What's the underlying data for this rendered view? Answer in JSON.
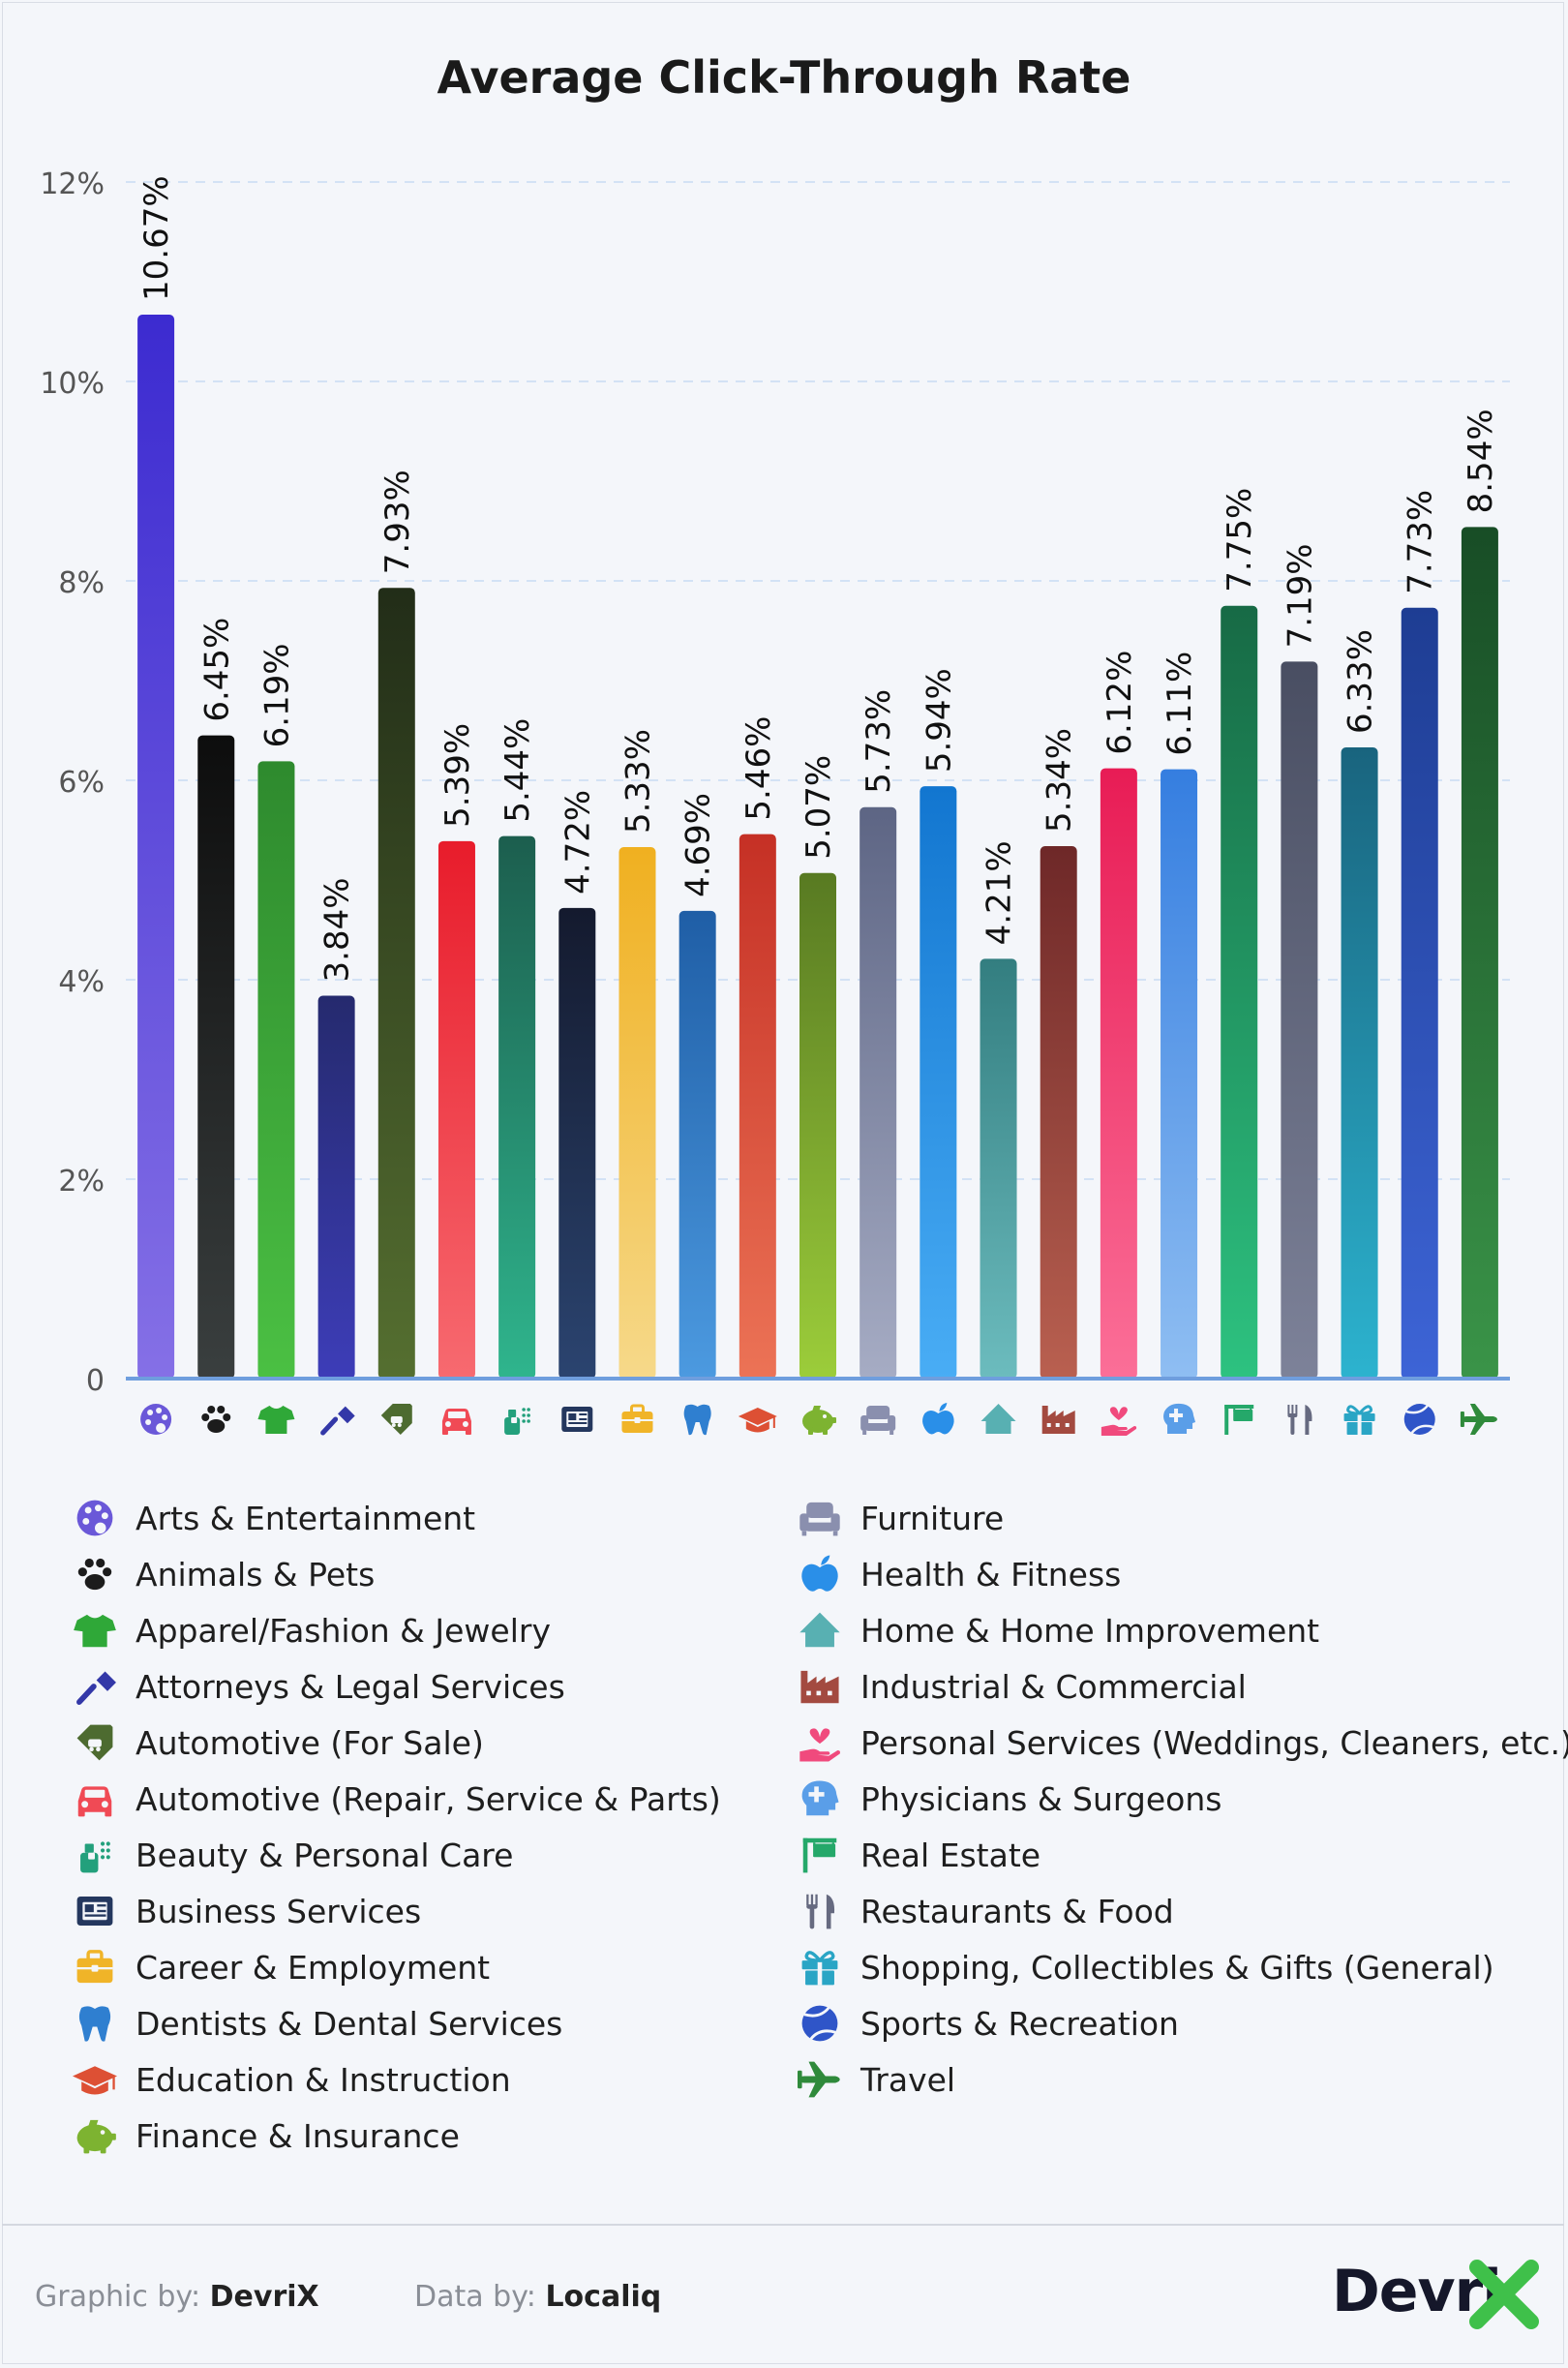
{
  "chart_data": {
    "type": "bar",
    "title": "Average Click-Through Rate",
    "xlabel": "",
    "ylabel": "",
    "ylim": [
      0,
      12
    ],
    "yticks": [
      "0",
      "2%",
      "4%",
      "6%",
      "8%",
      "10%",
      "12%"
    ],
    "ytick_values": [
      0,
      2,
      4,
      6,
      8,
      10,
      12
    ],
    "grid": true,
    "categories": [
      "Arts & Entertainment",
      "Animals & Pets",
      "Apparel/Fashion & Jewelry",
      "Attorneys & Legal Services",
      "Automotive (For Sale)",
      "Automotive (Repair, Service & Parts)",
      "Beauty & Personal Care",
      "Business Services",
      "Career & Employment",
      "Dentists & Dental Services",
      "Education & Instruction",
      "Finance & Insurance",
      "Furniture",
      "Health & Fitness",
      "Home & Home Improvement",
      "Industrial & Commercial",
      "Personal Services (Weddings, Cleaners, etc.)",
      "Physicians & Surgeons",
      "Real Estate",
      "Restaurants & Food",
      "Shopping, Collectibles & Gifts (General)",
      "Sports & Recreation",
      "Travel"
    ],
    "values": [
      10.67,
      6.45,
      6.19,
      3.84,
      7.93,
      5.39,
      5.44,
      4.72,
      5.33,
      4.69,
      5.46,
      5.07,
      5.73,
      5.94,
      4.21,
      5.34,
      6.12,
      6.11,
      7.75,
      7.19,
      6.33,
      7.73,
      8.54
    ],
    "data_labels": [
      "10.67%",
      "6.45%",
      "6.19%",
      "3.84%",
      "7.93%",
      "5.39%",
      "5.44%",
      "4.72%",
      "5.33%",
      "4.69%",
      "5.46%",
      "5.07%",
      "5.73%",
      "5.94%",
      "4.21%",
      "5.34%",
      "6.12%",
      "6.11%",
      "7.75%",
      "7.19%",
      "6.33%",
      "7.73%",
      "8.54%"
    ],
    "colors": [
      [
        "#3c2bd0",
        "#8570e6"
      ],
      [
        "#0d0d0d",
        "#3a3f3f"
      ],
      [
        "#2e8a2e",
        "#4bc043"
      ],
      [
        "#252a6e",
        "#3d3db8"
      ],
      [
        "#222d18",
        "#556f30"
      ],
      [
        "#e81c2b",
        "#f76a70"
      ],
      [
        "#1c5e4e",
        "#2fb58d"
      ],
      [
        "#141a2e",
        "#2b4470"
      ],
      [
        "#f0b020",
        "#f6d98a"
      ],
      [
        "#1f5ea6",
        "#4c9ae0"
      ],
      [
        "#c53025",
        "#ec7356"
      ],
      [
        "#587a22",
        "#9ccd3a"
      ],
      [
        "#5d6584",
        "#a6acc4"
      ],
      [
        "#1276d0",
        "#49adf5"
      ],
      [
        "#337e80",
        "#6cbcbe"
      ],
      [
        "#6e2828",
        "#b96050"
      ],
      [
        "#e81c55",
        "#fb6f98"
      ],
      [
        "#357ee0",
        "#8fbef2"
      ],
      [
        "#176a45",
        "#2dc280"
      ],
      [
        "#494e62",
        "#7d8299"
      ],
      [
        "#19647e",
        "#2cb3cf"
      ],
      [
        "#1e3d93",
        "#3d64d6"
      ],
      [
        "#184d26",
        "#3a9448"
      ]
    ],
    "icon_names": [
      "palette-icon",
      "paw-icon",
      "tshirt-icon",
      "gavel-icon",
      "car-tag-icon",
      "car-icon",
      "spray-bottle-icon",
      "newspaper-icon",
      "briefcase-icon",
      "tooth-icon",
      "graduation-cap-icon",
      "piggy-bank-icon",
      "armchair-icon",
      "apple-icon",
      "house-icon",
      "factory-icon",
      "hand-heart-icon",
      "head-medical-icon",
      "real-estate-sign-icon",
      "fork-knife-icon",
      "gift-icon",
      "ball-icon",
      "airplane-icon"
    ],
    "icon_colors": [
      "#6a58d8",
      "#1c1c1c",
      "#2fa838",
      "#3338a8",
      "#4d6b30",
      "#f04a55",
      "#23a07c",
      "#24375e",
      "#f0b428",
      "#2f7fd0",
      "#dd5034",
      "#7db331",
      "#8a8fae",
      "#2a8fe8",
      "#58b0b2",
      "#a34a40",
      "#f04a7d",
      "#5a9ee8",
      "#25a86a",
      "#666a80",
      "#2aa5c5",
      "#2f55c8",
      "#2f8a3b"
    ]
  },
  "footer": {
    "graphic_label": "Graphic by:",
    "graphic_value": "DevriX",
    "data_label": "Data by:",
    "data_value": "Localiq",
    "brand_text": "Devri"
  }
}
